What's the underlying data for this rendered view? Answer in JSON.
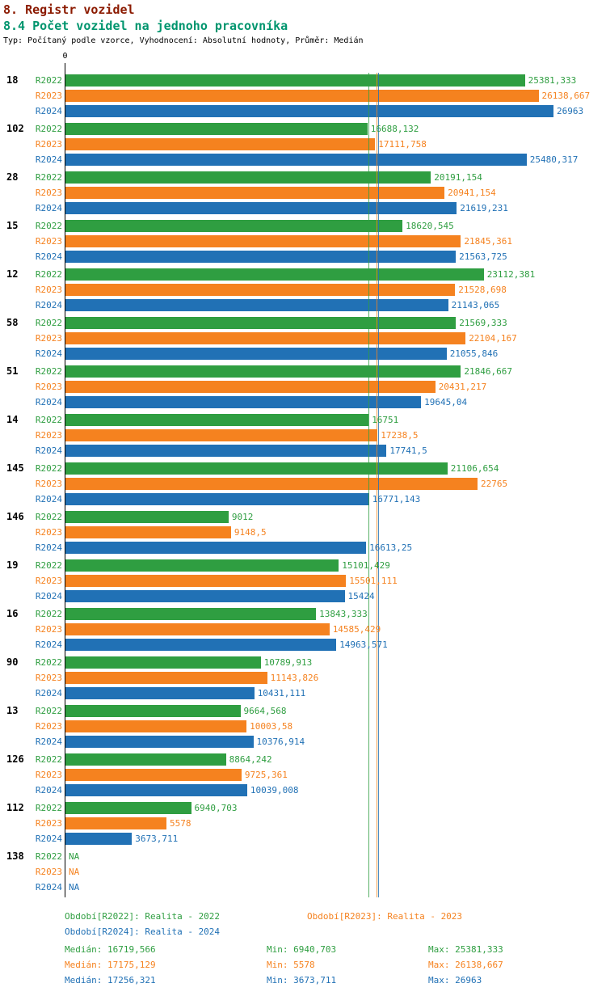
{
  "colors": {
    "title": "#8b1a00",
    "subtitle": "#00956e",
    "r2022": "#2f9e41",
    "r2023": "#f5821f",
    "r2024": "#2171b5",
    "axis": "#000000"
  },
  "chart_data": {
    "type": "bar",
    "orientation": "horizontal",
    "title": "8. Registr vozidel",
    "subtitle": "8.4 Počet vozidel na jednoho pracovníka",
    "note": "Typ: Počítaný podle vzorce, Vyhodnocení: Absolutní hodnoty, Průměr: Medián",
    "value_axis": {
      "min": 0,
      "zero_tick_label": "0"
    },
    "na_label": "NA",
    "legend_position": "bottom",
    "categories": [
      "18",
      "102",
      "28",
      "15",
      "12",
      "58",
      "51",
      "14",
      "145",
      "146",
      "19",
      "16",
      "90",
      "13",
      "126",
      "112",
      "138"
    ],
    "series": [
      {
        "name": "R2022",
        "color_key": "r2022",
        "median": 16719.566,
        "values": [
          25381.333,
          16688.132,
          20191.154,
          18620.545,
          23112.381,
          21569.333,
          21846.667,
          16751,
          21106.654,
          9012,
          15101.429,
          13843.333,
          10789.913,
          9664.568,
          8864.242,
          6940.703,
          null
        ],
        "labels": [
          "25381,333",
          "16688,132",
          "20191,154",
          "18620,545",
          "23112,381",
          "21569,333",
          "21846,667",
          "16751",
          "21106,654",
          "9012",
          "15101,429",
          "13843,333",
          "10789,913",
          "9664,568",
          "8864,242",
          "6940,703",
          "NA"
        ]
      },
      {
        "name": "R2023",
        "color_key": "r2023",
        "median": 17175.129,
        "values": [
          26138.667,
          17111.758,
          20941.154,
          21845.361,
          21528.698,
          22104.167,
          20431.217,
          17238.5,
          22765,
          9148.5,
          15501.111,
          14585.429,
          11143.826,
          10003.58,
          9725.361,
          5578,
          null
        ],
        "labels": [
          "26138,667",
          "17111,758",
          "20941,154",
          "21845,361",
          "21528,698",
          "22104,167",
          "20431,217",
          "17238,5",
          "22765",
          "9148,5",
          "15501,111",
          "14585,429",
          "11143,826",
          "10003,58",
          "9725,361",
          "5578",
          "NA"
        ]
      },
      {
        "name": "R2024",
        "color_key": "r2024",
        "median": 17256.321,
        "values": [
          26963,
          25480.317,
          21619.231,
          21563.725,
          21143.065,
          21055.846,
          19645.04,
          17741.5,
          16771.143,
          16613.25,
          15424,
          14963.571,
          10431.111,
          10376.914,
          10039.008,
          3673.711,
          null
        ],
        "labels": [
          "26963",
          "25480,317",
          "21619,231",
          "21563,725",
          "21143,065",
          "21055,846",
          "19645,04",
          "17741,5",
          "16771,143",
          "16613,25",
          "15424",
          "14963,571",
          "10431,111",
          "10376,914",
          "10039,008",
          "3673,711",
          "NA"
        ]
      }
    ]
  },
  "footer": {
    "legend": {
      "r2022": "Období[R2022]: Realita - 2022",
      "r2023": "Období[R2023]: Realita - 2023",
      "r2024": "Období[R2024]: Realita - 2024"
    },
    "stats": {
      "r2022": {
        "median": "Medián: 16719,566",
        "min": "Min: 6940,703",
        "max": "Max: 25381,333"
      },
      "r2023": {
        "median": "Medián: 17175,129",
        "min": "Min: 5578",
        "max": "Max: 26138,667"
      },
      "r2024": {
        "median": "Medián: 17256,321",
        "min": "Min: 3673,711",
        "max": "Max: 26963"
      }
    }
  }
}
